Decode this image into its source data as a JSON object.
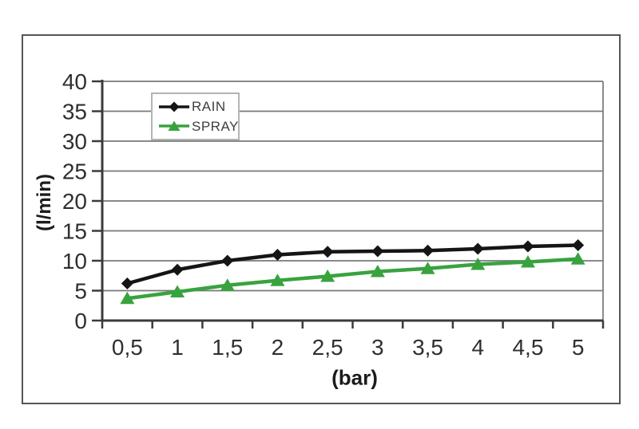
{
  "chart_data": {
    "type": "line",
    "title": "",
    "xlabel": "(bar)",
    "ylabel": "(l/min)",
    "categories": [
      "0,5",
      "1",
      "1,5",
      "2",
      "2,5",
      "3",
      "3,5",
      "4",
      "4,5",
      "5"
    ],
    "categories_numeric": [
      0.5,
      1,
      1.5,
      2,
      2.5,
      3,
      3.5,
      4,
      4.5,
      5
    ],
    "series": [
      {
        "name": "RAIN",
        "marker": "diamond",
        "color": "#151515",
        "values": [
          6.2,
          8.5,
          10.0,
          11.0,
          11.5,
          11.6,
          11.7,
          12.0,
          12.4,
          12.6
        ]
      },
      {
        "name": "SPRAY",
        "marker": "triangle",
        "color": "#38a33e",
        "values": [
          3.7,
          4.8,
          5.9,
          6.7,
          7.4,
          8.2,
          8.7,
          9.4,
          9.8,
          10.3
        ]
      }
    ],
    "ylim": [
      0,
      40
    ],
    "y_ticks": [
      0,
      5,
      10,
      15,
      20,
      25,
      30,
      35,
      40
    ],
    "grid": "horizontal",
    "legend_position": "top-left-inside"
  },
  "colors": {
    "background": "#ffffff",
    "frame_border": "#555555",
    "gridline": "#787878",
    "axis": "#3b3b3b",
    "tick_text": "#2f2f2f",
    "legend_border": "#b4b4b4",
    "legend_text": "#3f3f3f",
    "rain_line": "#151515",
    "spray_line": "#38a33e"
  }
}
